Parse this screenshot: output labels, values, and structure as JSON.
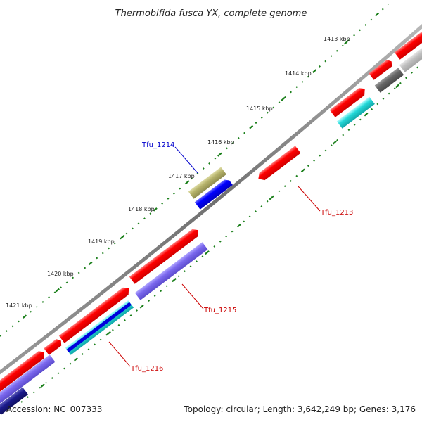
{
  "title": "Thermobifida fusca YX, complete genome",
  "accession": "Accession: NC_007333",
  "summary": "Topology: circular; Length: 3,642,249 bp; Genes: 3,176",
  "scale_labels": [
    "1413 kbp",
    "1414 kbp",
    "1415 kbp",
    "1416 kbp",
    "1417 kbp",
    "1418 kbp",
    "1419 kbp",
    "1420 kbp",
    "1421 kbp"
  ],
  "gene_labels": [
    {
      "name": "Tfu_1214",
      "color": "#0000cc"
    },
    {
      "name": "Tfu_1213",
      "color": "#cc0000"
    },
    {
      "name": "Tfu_1215",
      "color": "#cc0000"
    },
    {
      "name": "Tfu_1216",
      "color": "#cc0000"
    }
  ],
  "colors": {
    "backbone": "#808080",
    "tick": "#1a7f1a",
    "gene_red": "#ff0000",
    "gene_blue": "#0000ff",
    "gene_olive": "#b5b26a",
    "gene_cyan": "#22c8c8",
    "gene_purple": "#7b68ee",
    "gene_navy": "#1a1a8c",
    "gene_gray": "#666666",
    "gene_lightgray": "#c0c0c0"
  }
}
